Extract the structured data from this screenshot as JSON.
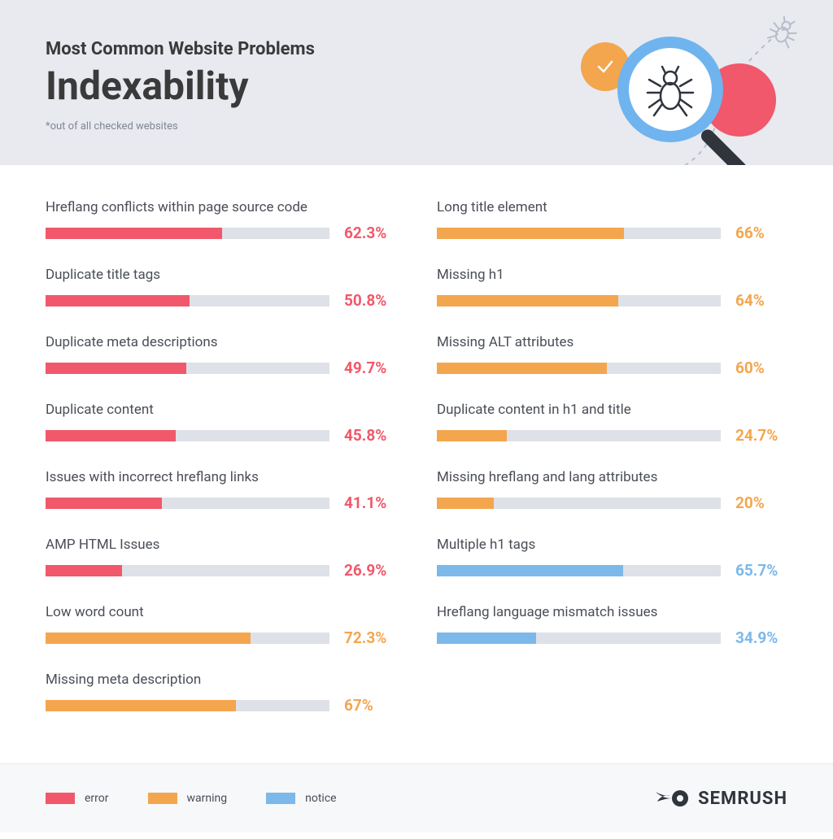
{
  "header": {
    "subtitle": "Most Common Website Problems",
    "title": "Indexability",
    "footnote": "*out of all checked websites"
  },
  "colors": {
    "error": "#f1586b",
    "warning": "#f3a64e",
    "notice": "#7cb8ea",
    "track": "#dfe1e8",
    "header_bg": "#e8eaf0",
    "legend_bg": "#f7f8fa",
    "text": "#3a3a3a",
    "label": "#4a4e57"
  },
  "legend": {
    "error": "error",
    "warning": "warning",
    "notice": "notice"
  },
  "brand": "SEMRUSH",
  "left": [
    {
      "label": "Hreflang conflicts within page source code",
      "value": 62.3,
      "display": "62.3%",
      "type": "error"
    },
    {
      "label": "Duplicate title tags",
      "value": 50.8,
      "display": "50.8%",
      "type": "error"
    },
    {
      "label": "Duplicate meta descriptions",
      "value": 49.7,
      "display": "49.7%",
      "type": "error"
    },
    {
      "label": "Duplicate content",
      "value": 45.8,
      "display": "45.8%",
      "type": "error"
    },
    {
      "label": "Issues with incorrect hreflang links",
      "value": 41.1,
      "display": "41.1%",
      "type": "error"
    },
    {
      "label": "AMP HTML Issues",
      "value": 26.9,
      "display": "26.9%",
      "type": "error"
    },
    {
      "label": "Low word count",
      "value": 72.3,
      "display": "72.3%",
      "type": "warning"
    },
    {
      "label": "Missing meta description",
      "value": 67,
      "display": "67%",
      "type": "warning"
    }
  ],
  "right": [
    {
      "label": "Long title element",
      "value": 66,
      "display": "66%",
      "type": "warning"
    },
    {
      "label": "Missing h1",
      "value": 64,
      "display": "64%",
      "type": "warning"
    },
    {
      "label": "Missing ALT attributes",
      "value": 60,
      "display": "60%",
      "type": "warning"
    },
    {
      "label": "Duplicate content in h1 and title",
      "value": 24.7,
      "display": "24.7%",
      "type": "warning"
    },
    {
      "label": "Missing hreflang and lang attributes",
      "value": 20,
      "display": "20%",
      "type": "warning"
    },
    {
      "label": "Multiple h1 tags",
      "value": 65.7,
      "display": "65.7%",
      "type": "notice"
    },
    {
      "label": "Hreflang language mismatch issues",
      "value": 34.9,
      "display": "34.9%",
      "type": "notice"
    }
  ]
}
